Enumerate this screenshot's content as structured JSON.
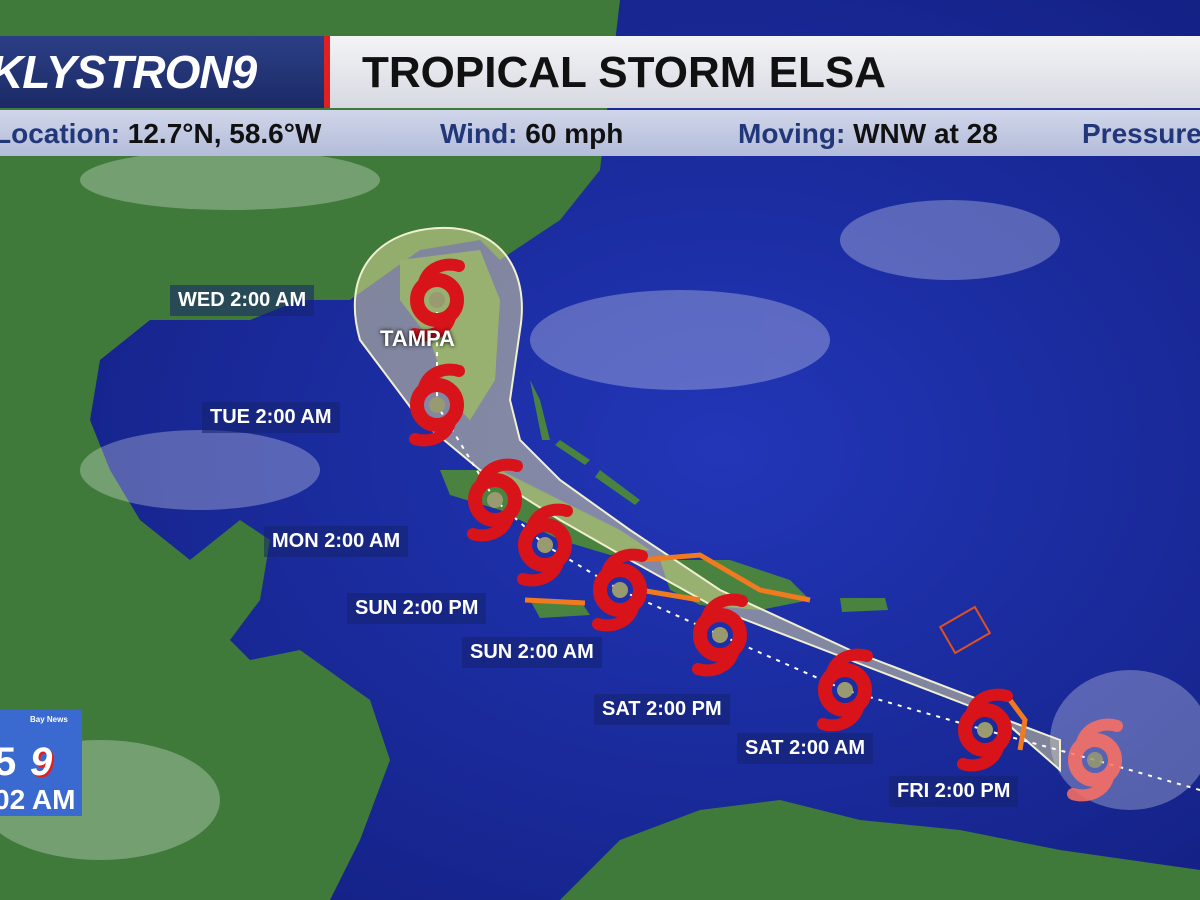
{
  "header": {
    "logo": "KLYSTRON9",
    "title": "TROPICAL STORM ELSA"
  },
  "info": {
    "location_label": "Location:",
    "location_value": "12.7°N, 58.6°W",
    "wind_label": "Wind:",
    "wind_value": "60 mph",
    "moving_label": "Moving:",
    "moving_value": "WNW at 28",
    "pressure_label": "Pressure"
  },
  "forecast_points": [
    {
      "label": "WED 2:00 AM"
    },
    {
      "label": "TUE 2:00 AM"
    },
    {
      "label": "MON 2:00 AM"
    },
    {
      "label": "SUN 2:00 PM"
    },
    {
      "label": "SUN 2:00 AM"
    },
    {
      "label": "SAT 2:00 PM"
    },
    {
      "label": "SAT 2:00 AM"
    },
    {
      "label": "FRI 2:00 PM"
    }
  ],
  "city": "TAMPA",
  "bug": {
    "network": "Bay News",
    "channel_partial": "5",
    "channel": "9",
    "time_partial": "02 AM"
  },
  "colors": {
    "ocean": "#1a2aa0",
    "land": "#3f7a3a",
    "storm_icon": "#d8141a",
    "cone": "#e8e0a0",
    "watch": "#f07a20"
  }
}
